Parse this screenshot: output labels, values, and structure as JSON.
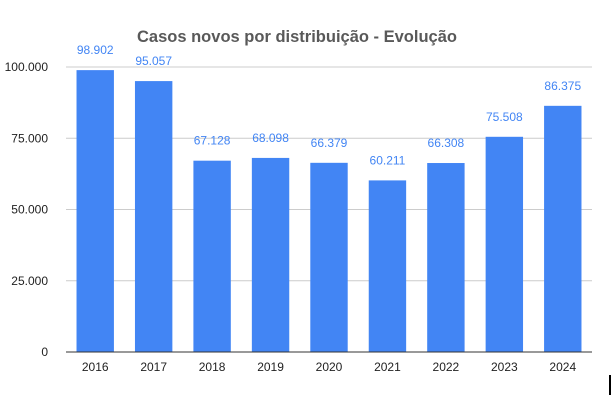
{
  "chart_data": {
    "type": "bar",
    "title": "Casos novos por distribuição - Evolução",
    "categories": [
      "2016",
      "2017",
      "2018",
      "2019",
      "2020",
      "2021",
      "2022",
      "2023",
      "2024"
    ],
    "values": [
      98902,
      95057,
      67128,
      68098,
      66379,
      60211,
      66308,
      75508,
      86375
    ],
    "data_labels": [
      "98.902",
      "95.057",
      "67.128",
      "68.098",
      "66.379",
      "60.211",
      "66.308",
      "75.508",
      "86.375"
    ],
    "y_ticks": [
      {
        "value": 0,
        "label": "0"
      },
      {
        "value": 25000,
        "label": "25.000"
      },
      {
        "value": 50000,
        "label": "50.000"
      },
      {
        "value": 75000,
        "label": "75.000"
      },
      {
        "value": 100000,
        "label": "100.000"
      }
    ],
    "ylim": [
      0,
      100000
    ],
    "grid": true,
    "legend": "none",
    "colors": {
      "bar": "#4285f4",
      "data_label": "#4285f4",
      "grid": "#cccccc",
      "baseline": "#333333",
      "title": "#595959"
    }
  }
}
